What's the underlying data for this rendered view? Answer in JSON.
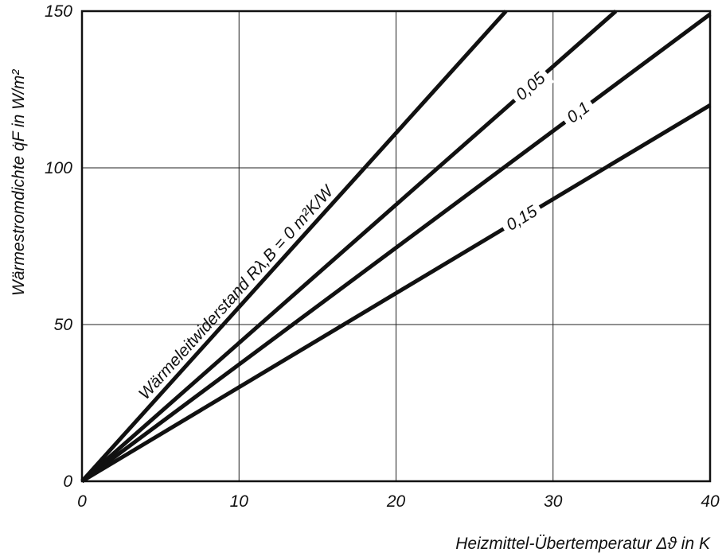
{
  "chart_data": {
    "type": "line",
    "title": "",
    "xlabel": "Heizmittel-Übertemperatur Δϑ in K",
    "ylabel": "Wärmestromdichte q̇F in W/m²",
    "xlim": [
      0,
      40
    ],
    "ylim": [
      0,
      150
    ],
    "x_ticks": [
      "0",
      "10",
      "20",
      "30",
      "40"
    ],
    "y_ticks": [
      "0",
      "50",
      "100",
      "150"
    ],
    "grid": true,
    "legend": "none",
    "series": [
      {
        "name": "Wärmeleitwiderstand Rλ,B = 0 m²K/W",
        "x": [
          0,
          27
        ],
        "y": [
          0,
          150
        ]
      },
      {
        "name": "0,05",
        "x": [
          0,
          34
        ],
        "y": [
          0,
          150
        ]
      },
      {
        "name": "0,1",
        "x": [
          0,
          40
        ],
        "y": [
          0,
          149
        ]
      },
      {
        "name": "0,15",
        "x": [
          0,
          40
        ],
        "y": [
          0,
          120
        ]
      }
    ],
    "line_color": "#111111"
  }
}
